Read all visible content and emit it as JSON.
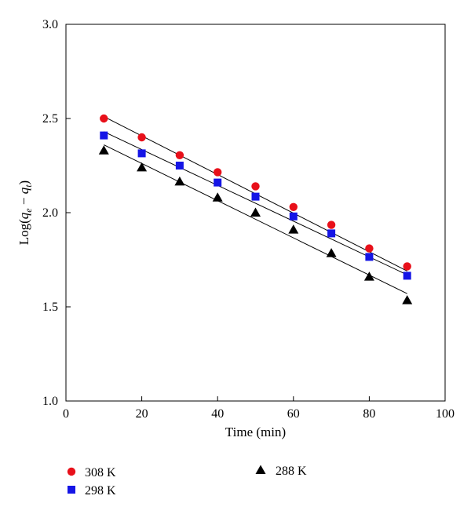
{
  "chart_data": {
    "type": "scatter",
    "xlabel": "Time (min)",
    "ylabel": {
      "prefix": "Log(",
      "q1": "q",
      "sub1": "e",
      "minus": " − ",
      "q2": "q",
      "sub2": "t",
      "suffix": ")"
    },
    "xlim": [
      0,
      100
    ],
    "ylim": [
      1.0,
      3.0
    ],
    "xticks": [
      "0",
      "20",
      "40",
      "60",
      "80",
      "100"
    ],
    "yticks": [
      "1.0",
      "1.5",
      "2.0",
      "2.5",
      "3.0"
    ],
    "grid": false,
    "legend_position": "bottom",
    "series": [
      {
        "name": "308 K",
        "marker": "circle",
        "color": "#e8101a",
        "x": [
          10,
          20,
          30,
          40,
          50,
          60,
          70,
          80,
          90
        ],
        "y": [
          2.5,
          2.4,
          2.305,
          2.215,
          2.14,
          2.03,
          1.935,
          1.81,
          1.715
        ],
        "fit": [
          [
            10,
            2.51
          ],
          [
            90,
            1.69
          ]
        ]
      },
      {
        "name": "298 K",
        "marker": "square",
        "color": "#1515e6",
        "x": [
          10,
          20,
          30,
          40,
          50,
          60,
          70,
          80,
          90
        ],
        "y": [
          2.41,
          2.315,
          2.25,
          2.16,
          2.085,
          1.98,
          1.89,
          1.765,
          1.665
        ],
        "fit": [
          [
            10,
            2.43
          ],
          [
            90,
            1.67
          ]
        ]
      },
      {
        "name": "288 K",
        "marker": "triangle",
        "color": "#000000",
        "x": [
          10,
          20,
          30,
          40,
          50,
          60,
          70,
          80,
          90
        ],
        "y": [
          2.33,
          2.24,
          2.165,
          2.08,
          2.0,
          1.91,
          1.785,
          1.66,
          1.535
        ],
        "fit": [
          [
            10,
            2.36
          ],
          [
            90,
            1.57
          ]
        ]
      }
    ]
  }
}
